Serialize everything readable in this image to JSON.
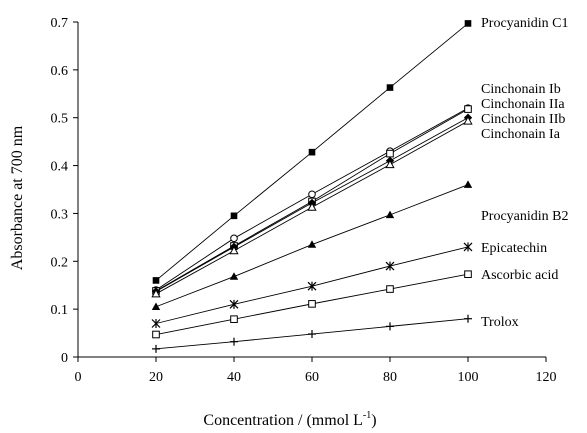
{
  "chart_data": {
    "type": "line",
    "xlabel": "Concentration / (mmol L",
    "xlabel_superscript": "-1",
    "xlabel_close": ")",
    "ylabel": "Absorbance at 700 nm",
    "xlim": [
      0,
      120
    ],
    "ylim": [
      0,
      0.7
    ],
    "xticks": [
      "0",
      "20",
      "40",
      "60",
      "80",
      "100",
      "120"
    ],
    "yticks": [
      "0",
      "0.1",
      "0.2",
      "0.3",
      "0.4",
      "0.5",
      "0.6",
      "0.7"
    ],
    "grid": false,
    "x": [
      20,
      40,
      60,
      80,
      100
    ],
    "series": [
      {
        "name": "Procyanidin C1",
        "marker": "filled-square",
        "values": [
          0.16,
          0.295,
          0.428,
          0.563,
          0.697
        ]
      },
      {
        "name": "Cinchonain Ib",
        "marker": "open-circle",
        "values": [
          0.14,
          0.248,
          0.34,
          0.43,
          0.52
        ]
      },
      {
        "name": "Cinchonain IIa",
        "marker": "open-square",
        "values": [
          0.138,
          0.232,
          0.325,
          0.425,
          0.518
        ]
      },
      {
        "name": "Cinchonain IIb",
        "marker": "filled-diamond",
        "values": [
          0.137,
          0.23,
          0.322,
          0.41,
          0.5
        ]
      },
      {
        "name": "Cinchonain Ia",
        "marker": "open-triangle",
        "values": [
          0.132,
          0.222,
          0.313,
          0.402,
          0.493
        ]
      },
      {
        "name": "Procyanidin B2",
        "marker": "filled-triangle",
        "values": [
          0.105,
          0.168,
          0.235,
          0.297,
          0.36
        ]
      },
      {
        "name": "Epicatechin",
        "marker": "asterisk",
        "values": [
          0.07,
          0.11,
          0.148,
          0.19,
          0.23
        ]
      },
      {
        "name": "Ascorbic acid",
        "marker": "open-square",
        "values": [
          0.047,
          0.079,
          0.111,
          0.142,
          0.173
        ]
      },
      {
        "name": "Trolox",
        "marker": "plus",
        "values": [
          0.017,
          0.032,
          0.048,
          0.064,
          0.08
        ]
      }
    ]
  }
}
